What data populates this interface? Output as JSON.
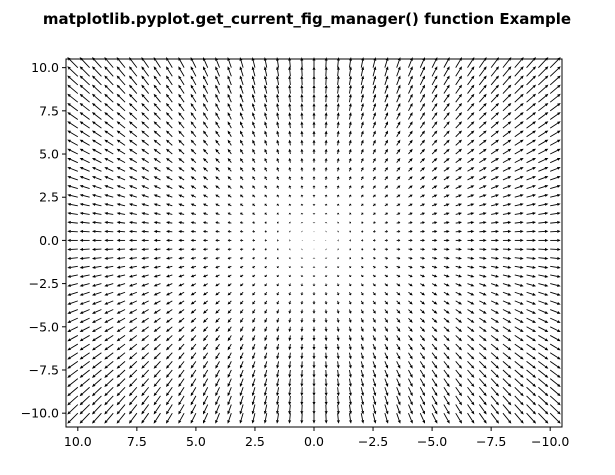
{
  "figure": {
    "suptitle": "matplotlib.pyplot.get_current_fig_manager() function Example",
    "background": "#ffffff"
  },
  "chart_data": {
    "type": "quiver",
    "title": "",
    "xlabel": "",
    "ylabel": "",
    "xlim": [
      10.5,
      -10.5
    ],
    "ylim": [
      -10.8,
      10.5
    ],
    "x_inverted": true,
    "grid": false,
    "arrow_color": "#000000",
    "xticks": [
      10.0,
      7.5,
      5.0,
      2.5,
      0.0,
      -2.5,
      -5.0,
      -7.5,
      -10.0
    ],
    "xtick_labels": [
      "10.0",
      "7.5",
      "5.0",
      "2.5",
      "0.0",
      "−2.5",
      "−5.0",
      "−7.5",
      "−10.0"
    ],
    "yticks": [
      10.0,
      7.5,
      5.0,
      2.5,
      0.0,
      -2.5,
      -5.0,
      -7.5,
      -10.0
    ],
    "ytick_labels": [
      "10.0",
      "7.5",
      "5.0",
      "2.5",
      "0.0",
      "−2.5",
      "−5.0",
      "−7.5",
      "−10.0"
    ],
    "grid_range": [
      -10.0,
      10.0
    ],
    "grid_step": 0.5,
    "vector_field": {
      "u": "sin(x) component scaled by x distance",
      "v": "sin(y) component scaled by y distance"
    }
  }
}
